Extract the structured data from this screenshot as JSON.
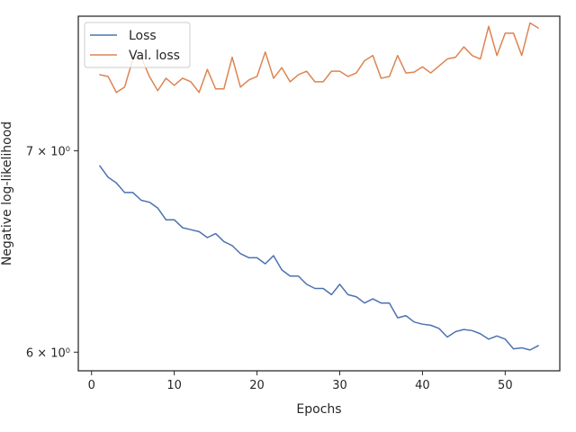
{
  "chart_data": {
    "type": "line",
    "xlabel": "Epochs",
    "ylabel": "Negative log-likelihood",
    "xlim": [
      -1.6,
      56.6
    ],
    "ylim": [
      5.915,
      7.76
    ],
    "yscale": "log",
    "xticks": [
      0,
      10,
      20,
      30,
      40,
      50
    ],
    "yticks": [
      {
        "value": 6,
        "label": "6 × 10⁰"
      },
      {
        "value": 7,
        "label": "7 × 10⁰"
      }
    ],
    "grid": false,
    "legend_position": "top-left",
    "x": [
      1,
      2,
      3,
      4,
      5,
      6,
      7,
      8,
      9,
      10,
      11,
      12,
      13,
      14,
      15,
      16,
      17,
      18,
      19,
      20,
      21,
      22,
      23,
      24,
      25,
      26,
      27,
      28,
      29,
      30,
      31,
      32,
      33,
      34,
      35,
      36,
      37,
      38,
      39,
      40,
      41,
      42,
      43,
      44,
      45,
      46,
      47,
      48,
      49,
      50,
      51,
      52,
      53,
      54
    ],
    "series": [
      {
        "name": "Loss",
        "color": "#4c72b0",
        "values": [
          6.92,
          6.86,
          6.83,
          6.78,
          6.78,
          6.74,
          6.73,
          6.7,
          6.64,
          6.64,
          6.6,
          6.59,
          6.58,
          6.55,
          6.57,
          6.53,
          6.51,
          6.47,
          6.45,
          6.45,
          6.42,
          6.46,
          6.39,
          6.36,
          6.36,
          6.32,
          6.3,
          6.3,
          6.27,
          6.32,
          6.27,
          6.26,
          6.23,
          6.25,
          6.23,
          6.23,
          6.16,
          6.17,
          6.14,
          6.13,
          6.125,
          6.11,
          6.07,
          6.095,
          6.105,
          6.1,
          6.085,
          6.06,
          6.075,
          6.06,
          6.015,
          6.02,
          6.01,
          6.03
        ]
      },
      {
        "name": "Val. loss",
        "color": "#dd8452",
        "values": [
          7.42,
          7.41,
          7.32,
          7.35,
          7.51,
          7.52,
          7.41,
          7.33,
          7.4,
          7.36,
          7.4,
          7.38,
          7.32,
          7.45,
          7.34,
          7.34,
          7.52,
          7.35,
          7.39,
          7.41,
          7.55,
          7.4,
          7.46,
          7.38,
          7.42,
          7.44,
          7.38,
          7.38,
          7.44,
          7.44,
          7.41,
          7.43,
          7.5,
          7.53,
          7.4,
          7.41,
          7.53,
          7.43,
          7.435,
          7.465,
          7.43,
          7.47,
          7.51,
          7.52,
          7.58,
          7.53,
          7.51,
          7.7,
          7.53,
          7.66,
          7.66,
          7.53,
          7.72,
          7.69
        ]
      }
    ]
  }
}
